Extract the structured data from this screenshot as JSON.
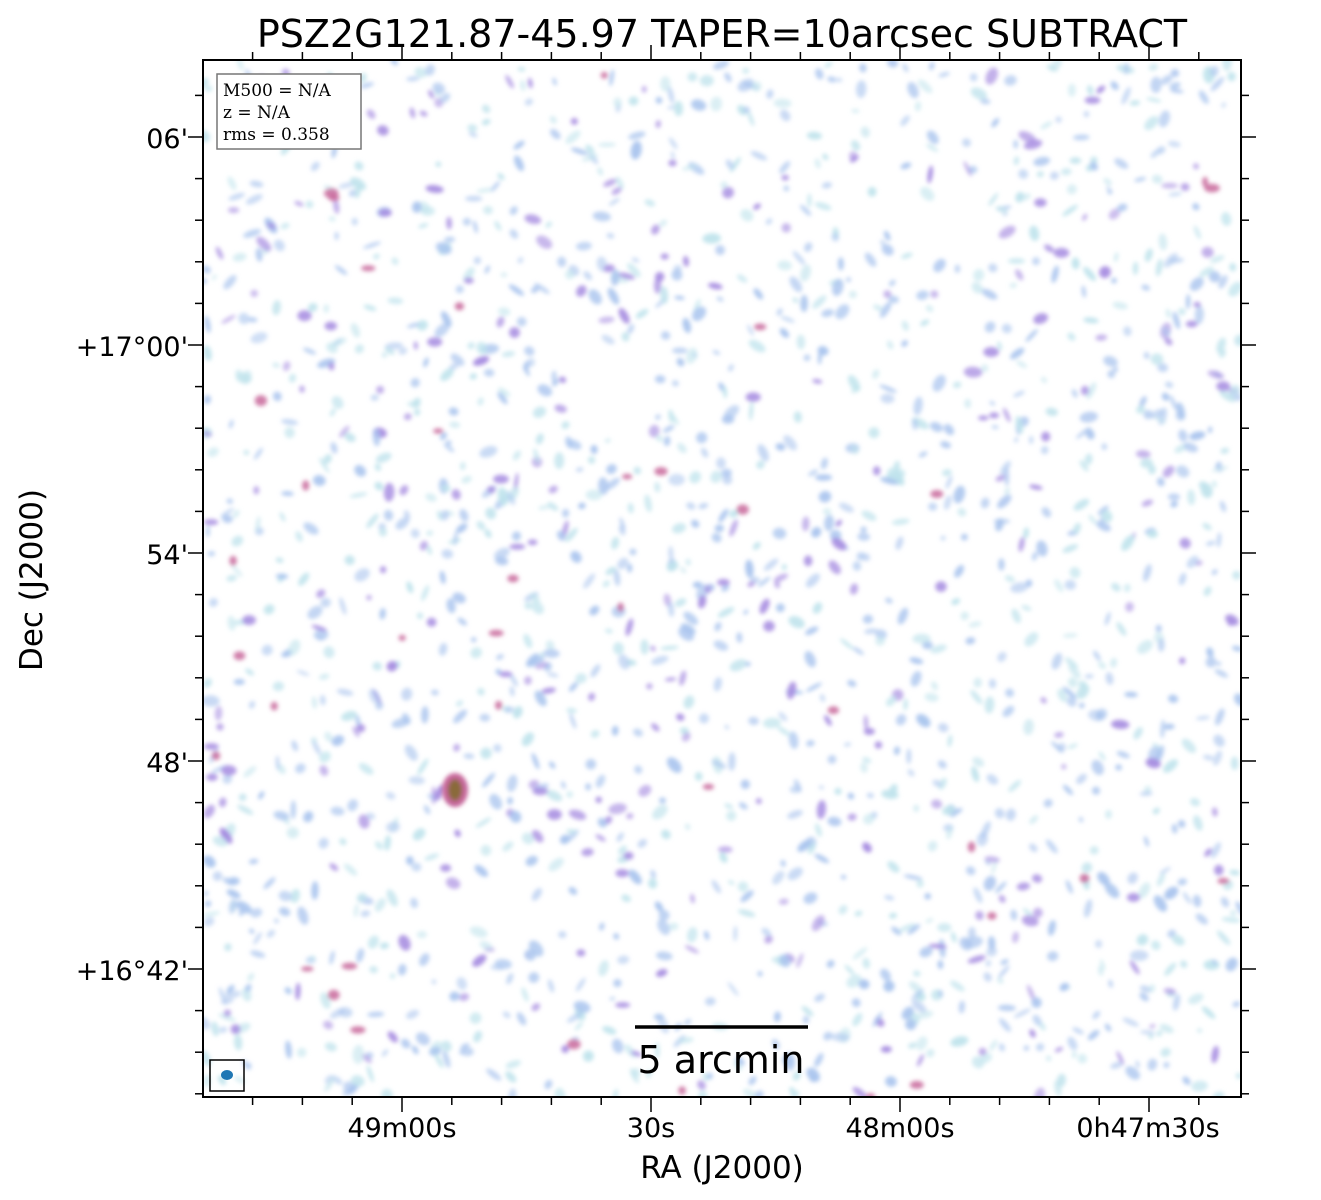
{
  "title": "PSZ2G121.87-45.97 TAPER=10arcsec SUBTRACT",
  "xlabel": "RA (J2000)",
  "ylabel": "Dec (J2000)",
  "ra_ticks": [
    "49m00s",
    "30s",
    "48m00s",
    "0h47m30s"
  ],
  "dec_ticks": [
    "06'",
    "+17°00'",
    "54'",
    "48'",
    "+16°42'"
  ],
  "info_box": {
    "m500": "M500 = N/A",
    "z": "z = N/A",
    "rms": "rms = 0.358"
  },
  "scale_bar": {
    "label": "5 arcmin"
  },
  "colors": {
    "noise_faint": "#bfe3ec",
    "noise_mid": "#a9c4ee",
    "noise_strong": "#a489e0",
    "peak": "#c8679b",
    "source_core": "#8a6a3a",
    "beam": "#1f77b4"
  }
}
